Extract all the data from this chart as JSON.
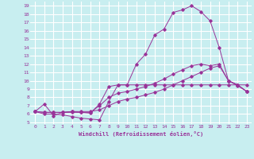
{
  "background_color": "#c8eef0",
  "grid_color": "#ffffff",
  "line_color": "#993399",
  "xlabel": "Windchill (Refroidissement éolien,°C)",
  "xlim": [
    -0.5,
    23.5
  ],
  "ylim": [
    4.8,
    19.5
  ],
  "yticks": [
    5,
    6,
    7,
    8,
    9,
    10,
    11,
    12,
    13,
    14,
    15,
    16,
    17,
    18,
    19
  ],
  "xticks": [
    0,
    1,
    2,
    3,
    4,
    5,
    6,
    7,
    8,
    9,
    10,
    11,
    12,
    13,
    14,
    15,
    16,
    17,
    18,
    19,
    20,
    21,
    22,
    23
  ],
  "series": [
    [
      6.3,
      7.2,
      5.8,
      6.2,
      6.3,
      6.2,
      6.1,
      7.2,
      9.3,
      9.5,
      9.5,
      12.0,
      13.2,
      15.5,
      16.2,
      18.2,
      18.5,
      19.0,
      18.3,
      17.2,
      14.0,
      10.0,
      9.4,
      8.7
    ],
    [
      6.3,
      6.0,
      6.0,
      5.9,
      5.7,
      5.5,
      5.4,
      5.3,
      7.5,
      9.5,
      9.5,
      9.5,
      9.5,
      9.5,
      9.5,
      9.5,
      9.5,
      9.5,
      9.5,
      9.5,
      9.5,
      9.5,
      9.5,
      9.5
    ],
    [
      6.3,
      6.2,
      6.2,
      6.2,
      6.2,
      6.2,
      6.2,
      7.0,
      8.0,
      8.5,
      8.7,
      9.0,
      9.3,
      9.7,
      10.2,
      10.8,
      11.3,
      11.8,
      12.0,
      11.8,
      12.0,
      10.0,
      9.5,
      8.7
    ],
    [
      6.3,
      6.2,
      6.2,
      6.2,
      6.3,
      6.3,
      6.3,
      6.5,
      7.0,
      7.5,
      7.8,
      8.0,
      8.3,
      8.6,
      9.0,
      9.5,
      10.0,
      10.5,
      11.0,
      11.5,
      11.8,
      10.0,
      9.5,
      8.7
    ]
  ],
  "figsize": [
    3.2,
    2.0
  ],
  "dpi": 100
}
